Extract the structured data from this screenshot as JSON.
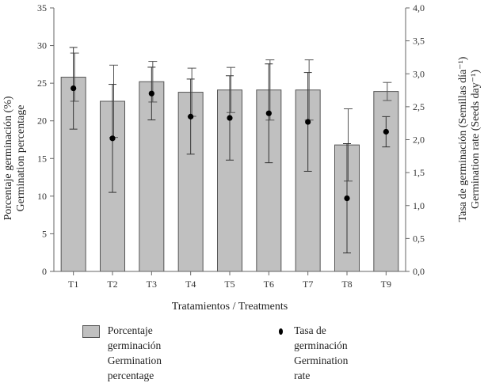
{
  "chart_data": {
    "type": "bar",
    "categories": [
      "T1",
      "T2",
      "T3",
      "T4",
      "T5",
      "T6",
      "T7",
      "T8",
      "T9"
    ],
    "xlabel": "Tratamientos / Treatments",
    "ylabel_left_line1": "Porcentaje germinación (%)",
    "ylabel_left_line2": "Germination percentage",
    "ylabel_right_line1": "Tasa de germinación (Semillas día⁻¹)",
    "ylabel_right_line2": "Germination rate (Seeds day⁻¹)",
    "ylim_left": [
      0,
      35
    ],
    "ylim_right": [
      0,
      4
    ],
    "yticks_left": [
      "0",
      "5",
      "10",
      "15",
      "20",
      "25",
      "30",
      "35"
    ],
    "yticks_right": [
      "0,0",
      "0,5",
      "1,0",
      "1,5",
      "2,0",
      "2,5",
      "3,0",
      "3,5",
      "4,0"
    ],
    "series": [
      {
        "name": "Porcentaje germinación / Germination percentage",
        "axis": "left",
        "kind": "bar",
        "values": [
          25.8,
          22.6,
          25.2,
          23.8,
          24.1,
          24.1,
          24.1,
          16.8,
          23.9
        ],
        "error": [
          3.2,
          4.8,
          2.7,
          3.2,
          3.0,
          4.0,
          4.0,
          4.8,
          1.2
        ]
      },
      {
        "name": "Tasa de germinación / Germination rate",
        "axis": "right",
        "kind": "point",
        "values": [
          2.78,
          2.02,
          2.7,
          2.35,
          2.33,
          2.4,
          2.27,
          1.11,
          2.12
        ],
        "error": [
          0.62,
          0.82,
          0.4,
          0.57,
          0.64,
          0.75,
          0.75,
          0.83,
          0.23
        ]
      }
    ],
    "legend": [
      {
        "line1": "Porcentaje germinación",
        "line2": "Germination percentage"
      },
      {
        "line1": "Tasa de germinación",
        "line2": "Germination rate"
      }
    ],
    "colors": {
      "bar_fill": "#c0c0c0",
      "bar_stroke": "#555555",
      "point": "#000000"
    }
  }
}
